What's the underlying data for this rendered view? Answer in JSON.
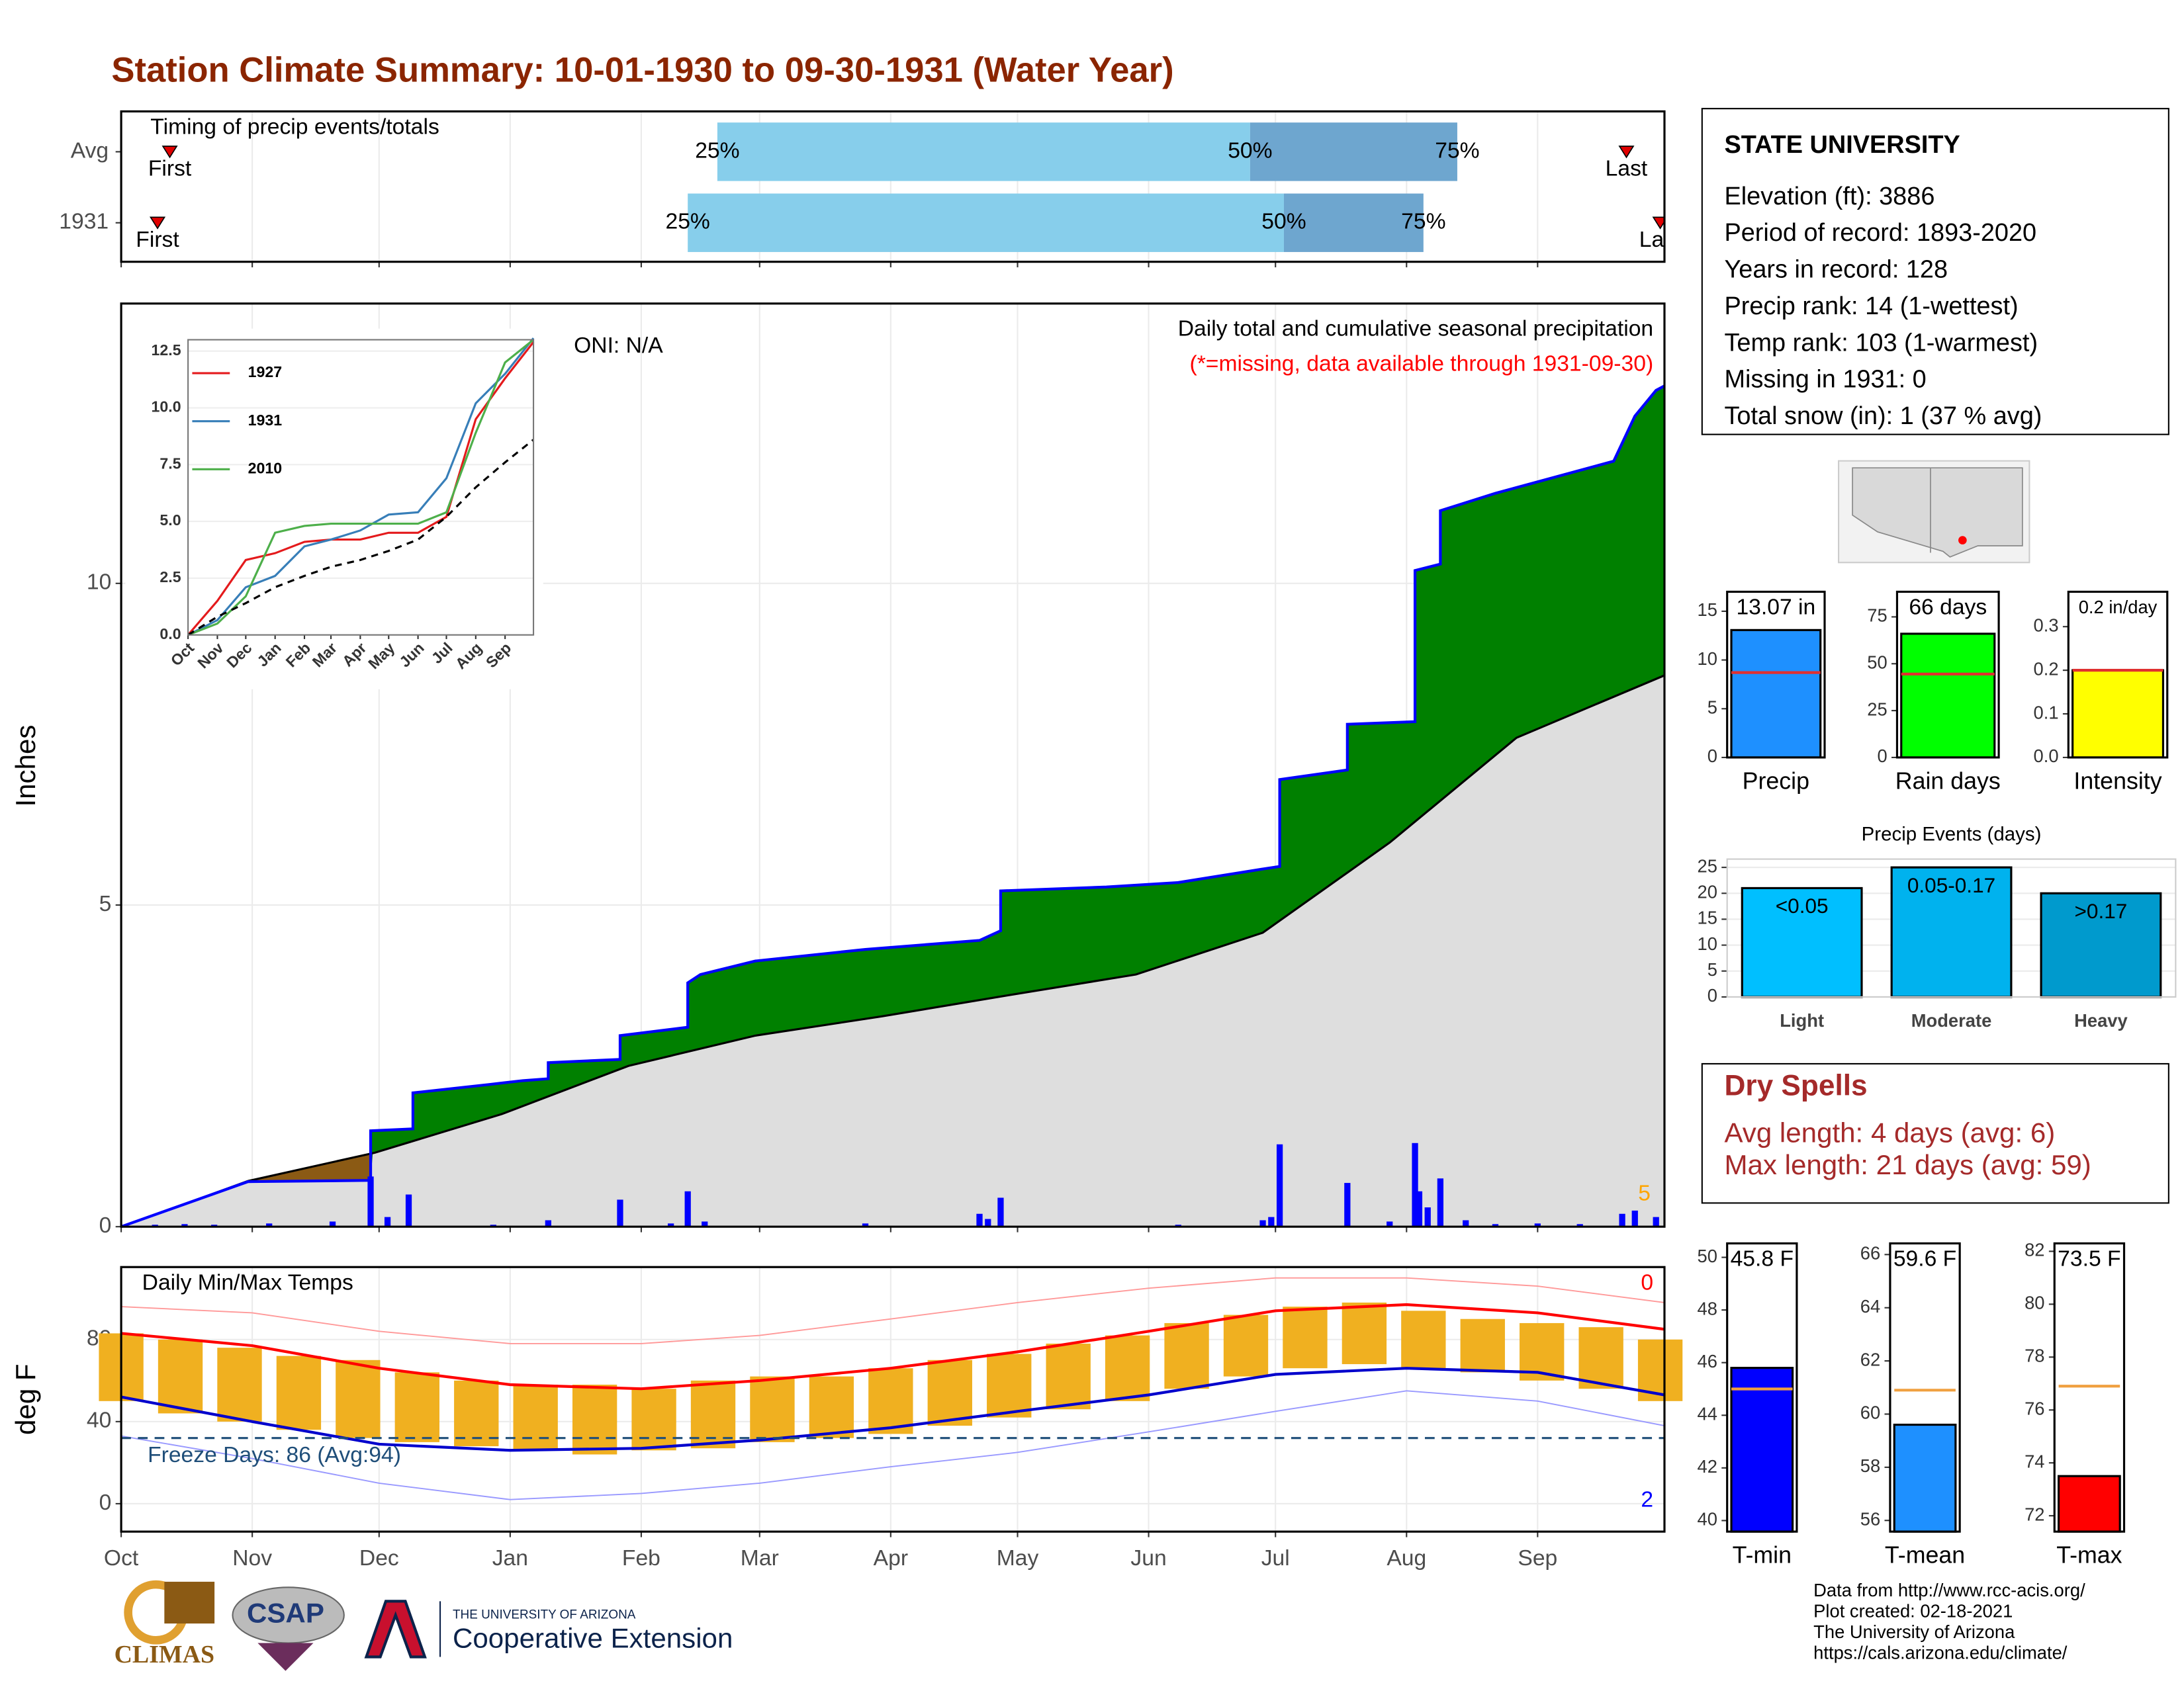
{
  "title": "Station Climate Summary: 10-01-1930 to 09-30-1931 (Water Year)",
  "info": {
    "title": "STATE UNIVERSITY",
    "lines": [
      "Elevation (ft): 3886",
      "Period of record: 1893-2020",
      "Years in record: 128",
      "Precip rank: 14 (1-wettest)",
      "Temp rank: 103 (1-warmest)",
      "Missing in 1931: 0",
      "Total snow (in): 1 (37 % avg)"
    ]
  },
  "dry_spells": {
    "title": "Dry Spells",
    "lines": [
      "Avg length: 4 days (avg: 6)",
      "Max length: 21 days (avg: 59)"
    ]
  },
  "footer": [
    "Data from http://www.rcc-acis.org/",
    "Plot created: 02-18-2021",
    "The University of Arizona",
    "https://cals.arizona.edu/climate/"
  ],
  "logos": {
    "climas": "CLIMAS",
    "csap": "CSAP",
    "ua_line1": "THE UNIVERSITY OF ARIZONA",
    "ua_line2": "Cooperative Extension"
  },
  "chart_data": [
    {
      "type": "timing",
      "title": "Timing of precip events/totals",
      "categories": [
        "Avg",
        "1931"
      ],
      "xlim": [
        0,
        365
      ],
      "series": [
        {
          "name": "First",
          "values": [
            11.5,
            8.6
          ]
        },
        {
          "name": "25%",
          "values": [
            141,
            134
          ]
        },
        {
          "name": "50%",
          "values": [
            267,
            275
          ]
        },
        {
          "name": "75%",
          "values": [
            316,
            308
          ]
        },
        {
          "name": "Last",
          "values": [
            356,
            364
          ]
        }
      ],
      "colors": [
        "#87ceeb",
        "#6ea6cf"
      ],
      "marker_color": "#e00000"
    },
    {
      "type": "cumulative",
      "annotations": [
        "ONI: N/A",
        "Daily total and cumulative seasonal precipitation"
      ],
      "note": "(*=missing, data available through 1931-09-30)",
      "note_color": "#ff0000",
      "corner_label": "5",
      "corner_color": "#ffa500",
      "ylabel": "Inches",
      "xlim": [
        0,
        365
      ],
      "ylim": [
        0,
        14.35
      ],
      "yticks": [
        0,
        5,
        10
      ],
      "grid": true,
      "cumulative": {
        "x": [
          0,
          30,
          59,
          59,
          69,
          69,
          87,
          95,
          101,
          101,
          118,
          118,
          134,
          134,
          137,
          150,
          176,
          203,
          208,
          208,
          233,
          250,
          270,
          274,
          274,
          290,
          290,
          306,
          306,
          312,
          312,
          325,
          353,
          358,
          363,
          365
        ],
        "values": [
          0,
          0.7,
          0.72,
          1.49,
          1.52,
          2.08,
          2.21,
          2.27,
          2.3,
          2.55,
          2.6,
          2.97,
          3.1,
          3.79,
          3.92,
          4.13,
          4.31,
          4.45,
          4.6,
          5.22,
          5.28,
          5.35,
          5.56,
          5.6,
          6.95,
          7.1,
          7.81,
          7.85,
          10.2,
          10.3,
          11.13,
          11.4,
          11.9,
          12.6,
          13.0,
          13.07
        ],
        "color": "#0000ff",
        "fill": "#008000"
      },
      "average": {
        "x": [
          0,
          15,
          30,
          60,
          90,
          120,
          150,
          180,
          210,
          240,
          270,
          300,
          330,
          365
        ],
        "values": [
          0,
          0.35,
          0.71,
          1.15,
          1.75,
          2.5,
          2.97,
          3.27,
          3.6,
          3.92,
          4.57,
          5.97,
          7.6,
          8.57
        ],
        "color": "#000000",
        "fill": "#dedede",
        "deficit_fill": "#8b5a14"
      },
      "daily": {
        "x": [
          8,
          15,
          22,
          35,
          50,
          59,
          63,
          68,
          88,
          101,
          118,
          130,
          134,
          138,
          176,
          203,
          205,
          208,
          250,
          270,
          272,
          274,
          290,
          300,
          306,
          307,
          309,
          312,
          318,
          325,
          335,
          345,
          355,
          358,
          363
        ],
        "values": [
          0.03,
          0.04,
          0.03,
          0.05,
          0.08,
          0.78,
          0.15,
          0.5,
          0.03,
          0.1,
          0.42,
          0.05,
          0.55,
          0.08,
          0.05,
          0.2,
          0.12,
          0.45,
          0.03,
          0.1,
          0.15,
          1.28,
          0.68,
          0.08,
          1.3,
          0.55,
          0.3,
          0.75,
          0.1,
          0.04,
          0.05,
          0.04,
          0.2,
          0.25,
          0.15
        ],
        "color": "#0000ff"
      }
    },
    {
      "type": "line",
      "xlim": [
        0,
        365
      ],
      "ylim": [
        0,
        13.0
      ],
      "yticks": [
        {
          "value": 0,
          "label": "0.0"
        },
        {
          "value": 2.5,
          "label": "2.5"
        },
        {
          "value": 5,
          "label": "5.0"
        },
        {
          "value": 7.5,
          "label": "7.5"
        },
        {
          "value": 10,
          "label": "10.0"
        },
        {
          "value": 12.5,
          "label": "12.5"
        }
      ],
      "xticks": [
        {
          "value": 0,
          "label": "Oct"
        },
        {
          "value": 31,
          "label": "Nov"
        },
        {
          "value": 61,
          "label": "Dec"
        },
        {
          "value": 92,
          "label": "Jan"
        },
        {
          "value": 123,
          "label": "Feb"
        },
        {
          "value": 151,
          "label": "Mar"
        },
        {
          "value": 182,
          "label": "Apr"
        },
        {
          "value": 212,
          "label": "May"
        },
        {
          "value": 243,
          "label": "Jun"
        },
        {
          "value": 273,
          "label": "Jul"
        },
        {
          "value": 304,
          "label": "Aug"
        },
        {
          "value": 335,
          "label": "Sep"
        }
      ],
      "x": [
        0,
        31,
        61,
        92,
        123,
        151,
        182,
        212,
        243,
        273,
        304,
        335,
        365
      ],
      "series": [
        {
          "name": "1927",
          "color": "#e41a1c",
          "values": [
            0,
            1.5,
            3.3,
            3.6,
            4.1,
            4.2,
            4.2,
            4.5,
            4.5,
            5.2,
            9.5,
            11.3,
            12.9
          ]
        },
        {
          "name": "1931",
          "color": "#377eb8",
          "values": [
            0,
            0.65,
            2.1,
            2.6,
            3.9,
            4.2,
            4.6,
            5.3,
            5.4,
            6.9,
            10.2,
            11.5,
            13.07
          ]
        },
        {
          "name": "2010",
          "color": "#4daf4a",
          "values": [
            0,
            0.5,
            1.7,
            4.5,
            4.8,
            4.9,
            4.9,
            4.9,
            4.9,
            5.4,
            8.9,
            12.0,
            13.0
          ]
        },
        {
          "color": "#000000",
          "dash": true,
          "values": [
            0,
            0.8,
            1.4,
            2.1,
            2.6,
            3.0,
            3.3,
            3.7,
            4.2,
            5.2,
            6.5,
            7.6,
            8.6
          ]
        }
      ]
    },
    {
      "type": "temps",
      "title": "Daily Min/Max Temps",
      "ylabel": "deg F",
      "xlim": [
        0,
        365
      ],
      "ylim": [
        -13.6,
        115.3
      ],
      "yticks": [
        0,
        40,
        80
      ],
      "grid": true,
      "xticks": [
        {
          "value": 0,
          "label": "Oct"
        },
        {
          "value": 31,
          "label": "Nov"
        },
        {
          "value": 61,
          "label": "Dec"
        },
        {
          "value": 92,
          "label": "Jan"
        },
        {
          "value": 123,
          "label": "Feb"
        },
        {
          "value": 151,
          "label": "Mar"
        },
        {
          "value": 182,
          "label": "Apr"
        },
        {
          "value": 212,
          "label": "May"
        },
        {
          "value": 243,
          "label": "Jun"
        },
        {
          "value": 273,
          "label": "Jul"
        },
        {
          "value": 304,
          "label": "Aug"
        },
        {
          "value": 335,
          "label": "Sep"
        }
      ],
      "daily": {
        "x": [
          0,
          14,
          28,
          42,
          56,
          70,
          84,
          98,
          112,
          126,
          140,
          154,
          168,
          182,
          196,
          210,
          224,
          238,
          252,
          266,
          280,
          294,
          308,
          322,
          336,
          350,
          364
        ],
        "max": [
          83,
          80,
          76,
          72,
          70,
          64,
          60,
          58,
          58,
          56,
          60,
          62,
          62,
          66,
          70,
          73,
          78,
          82,
          88,
          92,
          96,
          98,
          94,
          90,
          88,
          86,
          80
        ],
        "min": [
          50,
          44,
          40,
          36,
          32,
          30,
          28,
          26,
          24,
          26,
          27,
          30,
          32,
          34,
          38,
          42,
          46,
          50,
          56,
          62,
          66,
          68,
          66,
          64,
          60,
          56,
          50
        ],
        "color": "#f0b020"
      },
      "normals": {
        "x": [
          0,
          31,
          61,
          92,
          123,
          151,
          182,
          212,
          243,
          273,
          304,
          335,
          365
        ],
        "max": [
          83,
          77,
          66,
          58,
          56,
          60,
          66,
          74,
          84,
          94,
          97,
          93,
          85
        ],
        "min": [
          52,
          40,
          29,
          26,
          27,
          31,
          37,
          45,
          53,
          63,
          66,
          64,
          53
        ],
        "record_max": [
          96,
          93,
          84,
          78,
          78,
          82,
          90,
          98,
          105,
          110,
          110,
          106,
          98
        ],
        "record_min": [
          33,
          22,
          10,
          2,
          5,
          10,
          18,
          25,
          35,
          45,
          55,
          50,
          38
        ],
        "max_color": "#ff0000",
        "min_color": "#0000cc",
        "record_max_color": "#ff9999",
        "record_min_color": "#9999ff"
      },
      "freeze": {
        "value": 32,
        "label": "Freeze Days: 86 (Avg:94)",
        "color": "#1f4e79"
      },
      "corner_labels": [
        {
          "text": "0",
          "color": "#ff0000"
        },
        {
          "text": "2",
          "color": "#0000ff"
        }
      ]
    },
    {
      "type": "bar",
      "categories": [
        "Precip"
      ],
      "values": [
        13.07
      ],
      "value_labels": [
        "13.07 in"
      ],
      "color": "#1e90ff",
      "average": 8.71,
      "average_color": "#e03030",
      "ylim": [
        0,
        17
      ],
      "yticks": [
        0,
        5,
        10,
        15
      ]
    },
    {
      "type": "bar",
      "categories": [
        "Rain days"
      ],
      "values": [
        66
      ],
      "value_labels": [
        "66 days"
      ],
      "color": "#00ff00",
      "average": 44.5,
      "average_color": "#e03030",
      "ylim": [
        0,
        88.4
      ],
      "yticks": [
        0,
        25,
        50,
        75
      ]
    },
    {
      "type": "bar",
      "categories": [
        "Intensity"
      ],
      "values": [
        0.2
      ],
      "value_labels": [
        "0.2 in/day"
      ],
      "color": "#ffff00",
      "average": 0.2,
      "average_color": "#e03030",
      "ylim": [
        0,
        0.38
      ],
      "yticks": [
        {
          "value": 0,
          "label": "0.0"
        },
        {
          "value": 0.1,
          "label": "0.1"
        },
        {
          "value": 0.2,
          "label": "0.2"
        },
        {
          "value": 0.3,
          "label": "0.3"
        }
      ]
    },
    {
      "type": "bar",
      "title": "Precip Events (days)",
      "categories": [
        "Light",
        "Moderate",
        "Heavy"
      ],
      "values": [
        21,
        25,
        20
      ],
      "bar_labels": [
        "<0.05",
        "0.05-0.17",
        ">0.17"
      ],
      "colors": [
        "#00bfff",
        "#00b2ee",
        "#009acd"
      ],
      "ylim": [
        0,
        26.6
      ],
      "yticks": [
        0,
        5,
        10,
        15,
        20,
        25
      ],
      "grid": true
    },
    {
      "type": "bar",
      "categories": [
        "T-min"
      ],
      "values": [
        45.8
      ],
      "value_labels": [
        "45.8 F"
      ],
      "color": "#0000ff",
      "average": 45.0,
      "average_color": "#f0a040",
      "ylim": [
        39.58,
        50.53
      ],
      "yticks": [
        40,
        42,
        44,
        46,
        48,
        50
      ]
    },
    {
      "type": "bar",
      "categories": [
        "T-mean"
      ],
      "values": [
        59.6
      ],
      "value_labels": [
        "59.6 F"
      ],
      "color": "#1e90ff",
      "average": 60.9,
      "average_color": "#f0a040",
      "ylim": [
        55.58,
        66.42
      ],
      "yticks": [
        56,
        58,
        60,
        62,
        64,
        66
      ]
    },
    {
      "type": "bar",
      "categories": [
        "T-max"
      ],
      "values": [
        73.5
      ],
      "value_labels": [
        "73.5 F"
      ],
      "color": "#ff0000",
      "average": 76.9,
      "average_color": "#f0a040",
      "ylim": [
        71.4,
        82.3
      ],
      "yticks": [
        72,
        74,
        76,
        78,
        80,
        82
      ]
    }
  ]
}
